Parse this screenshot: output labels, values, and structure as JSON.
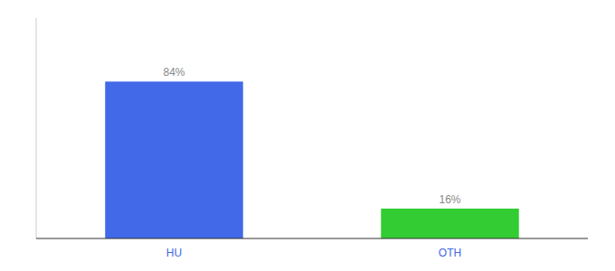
{
  "chart_data": {
    "type": "bar",
    "categories": [
      "HU",
      "OTH"
    ],
    "values": [
      84,
      16
    ],
    "value_labels": [
      "84%",
      "16%"
    ],
    "colors": [
      "#4169e8",
      "#33cc33"
    ],
    "ylim": [
      0,
      118
    ],
    "data_labels": true,
    "tick_labels": "x",
    "grid": false
  }
}
